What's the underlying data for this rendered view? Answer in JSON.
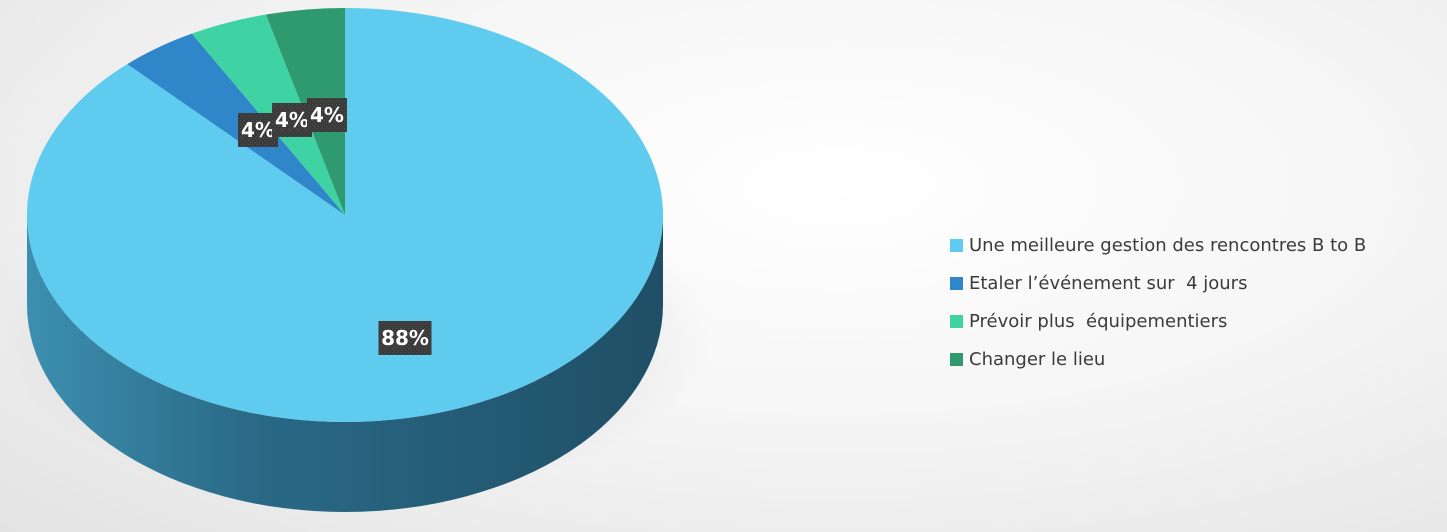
{
  "chart_data": {
    "type": "pie",
    "style": "3d",
    "categories": [
      "Une meilleure gestion des rencontres B to B",
      "Etaler l’événement sur  4 jours",
      "Prévoir plus  équipementiers",
      "Changer le lieu"
    ],
    "values": [
      88,
      4,
      4,
      4
    ],
    "data_labels": [
      "88%",
      "4%",
      "4%",
      "4%"
    ],
    "colors": [
      "#5ecbef",
      "#2f86c8",
      "#3fd3a3",
      "#2f9970"
    ],
    "legend_position": "right",
    "title": ""
  }
}
